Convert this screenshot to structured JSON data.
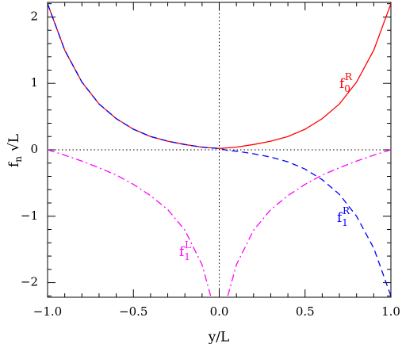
{
  "chart_data": {
    "type": "line",
    "xlabel": "y/L",
    "ylabel": "f",
    "ylabel_sub": "n",
    "ylabel_suffix": "√L",
    "x": [
      -1,
      -0.9,
      -0.8,
      -0.7,
      -0.6,
      -0.5,
      -0.4,
      -0.3,
      -0.2,
      -0.1,
      -0.05,
      0,
      0.05,
      0.1,
      0.2,
      0.3,
      0.4,
      0.5,
      0.6,
      0.7,
      0.8,
      0.9,
      1
    ],
    "series": [
      {
        "name": "f",
        "name_sub": "0",
        "name_sup": "R",
        "color": "#ff0000",
        "dash": "solid",
        "values": [
          2.2,
          1.5,
          1.02,
          0.69,
          0.47,
          0.31,
          0.2,
          0.13,
          0.08,
          0.04,
          0.03,
          0.02,
          0.03,
          0.04,
          0.08,
          0.13,
          0.2,
          0.31,
          0.47,
          0.69,
          1.02,
          1.5,
          2.2
        ]
      },
      {
        "name": "f",
        "name_sub": "1",
        "name_sup": "R",
        "color": "#0000ff",
        "dash": "dashed",
        "values": [
          2.2,
          1.5,
          1.02,
          0.69,
          0.47,
          0.31,
          0.2,
          0.13,
          0.08,
          0.04,
          0.03,
          0.02,
          -0.01,
          -0.02,
          -0.06,
          -0.11,
          -0.18,
          -0.29,
          -0.45,
          -0.67,
          -1.0,
          -1.48,
          -2.2
        ]
      },
      {
        "name": "f",
        "name_sub": "1",
        "name_sup": "L",
        "color": "#ff00ff",
        "dash": "dashdot",
        "values": [
          0,
          -0.08,
          -0.17,
          -0.27,
          -0.38,
          -0.52,
          -0.69,
          -0.9,
          -1.21,
          -1.73,
          -2.2,
          null,
          -2.2,
          -1.73,
          -1.21,
          -0.9,
          -0.69,
          -0.52,
          -0.38,
          -0.27,
          -0.17,
          -0.08,
          0
        ]
      }
    ],
    "xlim": [
      -1,
      1
    ],
    "ylim": [
      -2.22,
      2.22
    ],
    "xticks": [
      {
        "value": -1,
        "label": "−1.0"
      },
      {
        "value": -0.5,
        "label": "−0.5"
      },
      {
        "value": 0,
        "label": "0.0"
      },
      {
        "value": 0.5,
        "label": "0.5"
      },
      {
        "value": 1,
        "label": "1.0"
      }
    ],
    "yticks": [
      {
        "value": -2,
        "label": "−2"
      },
      {
        "value": -1,
        "label": "−1"
      },
      0,
      1,
      2
    ],
    "xminor": [
      -0.9,
      -0.8,
      -0.7,
      -0.6,
      -0.4,
      -0.3,
      -0.2,
      -0.1,
      0.1,
      0.2,
      0.3,
      0.4,
      0.6,
      0.7,
      0.8,
      0.9
    ],
    "yminor": [
      -2.2,
      -1.8,
      -1.6,
      -1.4,
      -1.2,
      -0.8,
      -0.6,
      -0.4,
      -0.2,
      0.2,
      0.4,
      0.6,
      0.8,
      1.2,
      1.4,
      1.6,
      1.8,
      2.2
    ],
    "hlines": [
      0
    ],
    "vlines": [
      0
    ]
  }
}
